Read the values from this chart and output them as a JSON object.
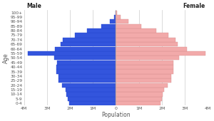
{
  "age_groups": [
    "0-4",
    "5-9",
    "10-14",
    "15-19",
    "20-24",
    "25-29",
    "30-34",
    "35-39",
    "40-44",
    "45-49",
    "50-54",
    "55-59",
    "60-64",
    "65-69",
    "70-74",
    "75-79",
    "80-84",
    "85-89",
    "90-94",
    "95-99",
    "100+"
  ],
  "male": [
    2050000,
    2100000,
    2150000,
    2200000,
    2350000,
    2500000,
    2500000,
    2600000,
    2600000,
    2550000,
    2700000,
    3850000,
    2650000,
    2400000,
    2300000,
    1800000,
    1250000,
    650000,
    270000,
    70000,
    15000
  ],
  "female": [
    1950000,
    2000000,
    2050000,
    2100000,
    2250000,
    2400000,
    2400000,
    2500000,
    2500000,
    2500000,
    2750000,
    3900000,
    3100000,
    2700000,
    2600000,
    2300000,
    1750000,
    1100000,
    560000,
    190000,
    55000
  ],
  "male_color": "#3355dd",
  "female_color": "#f2aaaa",
  "male_edge": "#2244cc",
  "female_edge": "#d08888",
  "background": "#ffffff",
  "grid_color": "#cccccc",
  "xlabel": "Population",
  "ylabel": "Age",
  "xlim": 4000000,
  "tick_labels": [
    "4M",
    "3M",
    "2M",
    "1M",
    "0",
    "1M",
    "2M",
    "3M",
    "4M"
  ]
}
